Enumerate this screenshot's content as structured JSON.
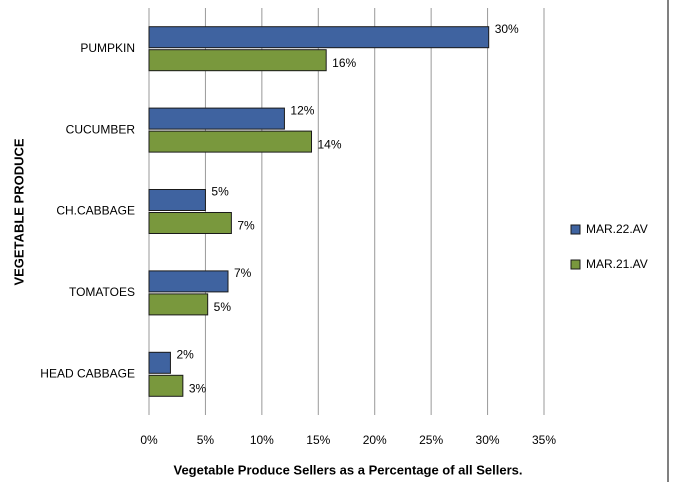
{
  "chart_data": {
    "type": "hbar",
    "categories": [
      "PUMPKIN",
      "CUCUMBER",
      "CH.CABBAGE",
      "TOMATOES",
      "HEAD CABBAGE"
    ],
    "series": [
      {
        "name": "MAR.22.AV",
        "color": "#3f63a0",
        "values": [
          30.1,
          12,
          5,
          7,
          1.9
        ],
        "value_labels": [
          "30%",
          "12%",
          "5%",
          "7%",
          "2%"
        ]
      },
      {
        "name": "MAR.21.AV",
        "color": "#79983d",
        "values": [
          15.7,
          14.4,
          7.3,
          5.2,
          3
        ],
        "value_labels": [
          "16%",
          "14%",
          "7%",
          "5%",
          "3%"
        ]
      }
    ],
    "xlim": [
      0,
      35
    ],
    "xticks": [
      {
        "value": 0,
        "label": "0%"
      },
      {
        "value": 5,
        "label": "5%"
      },
      {
        "value": 10,
        "label": "10%"
      },
      {
        "value": 15,
        "label": "15%"
      },
      {
        "value": 20,
        "label": "20%"
      },
      {
        "value": 25,
        "label": "25%"
      },
      {
        "value": 30,
        "label": "30%"
      },
      {
        "value": 35,
        "label": "35%"
      }
    ],
    "x_label": "Vegetable Produce Sellers as a Percentage of all Sellers.",
    "y_label": "VEGETABLE PRODUCE",
    "grid": true,
    "legend": "right"
  }
}
